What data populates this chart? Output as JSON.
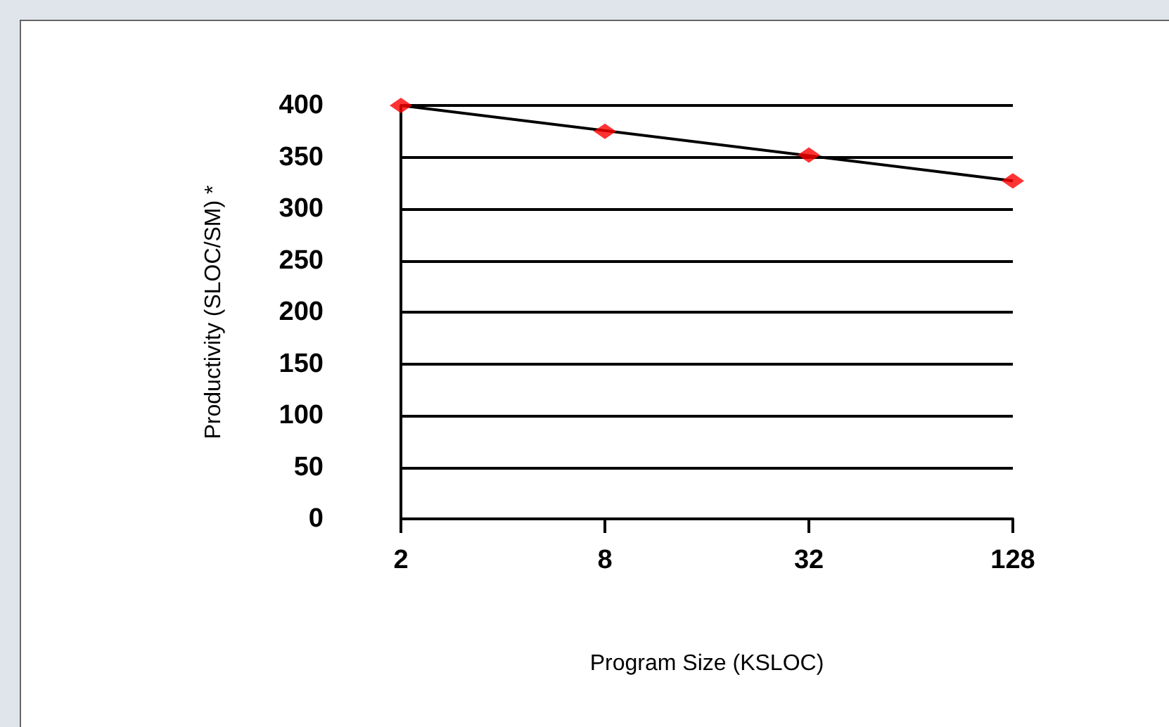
{
  "chart_data": {
    "type": "scatter",
    "xlabel": "Program Size (KSLOC)",
    "ylabel": "Productivity (SLOC/SM) *",
    "categories": [
      "2",
      "8",
      "32",
      "128"
    ],
    "series": [
      {
        "color": "#ff0000",
        "values": [
          400,
          375,
          352,
          327
        ],
        "marker": "diamond"
      },
      {
        "type": "line",
        "color": "#000000",
        "x": [
          "2",
          "128"
        ],
        "values": [
          400,
          327
        ],
        "marker": "none"
      }
    ],
    "ylim": [
      0,
      400
    ],
    "yticks": [
      0,
      50,
      100,
      150,
      200,
      250,
      300,
      350,
      400
    ],
    "grid": "y"
  }
}
